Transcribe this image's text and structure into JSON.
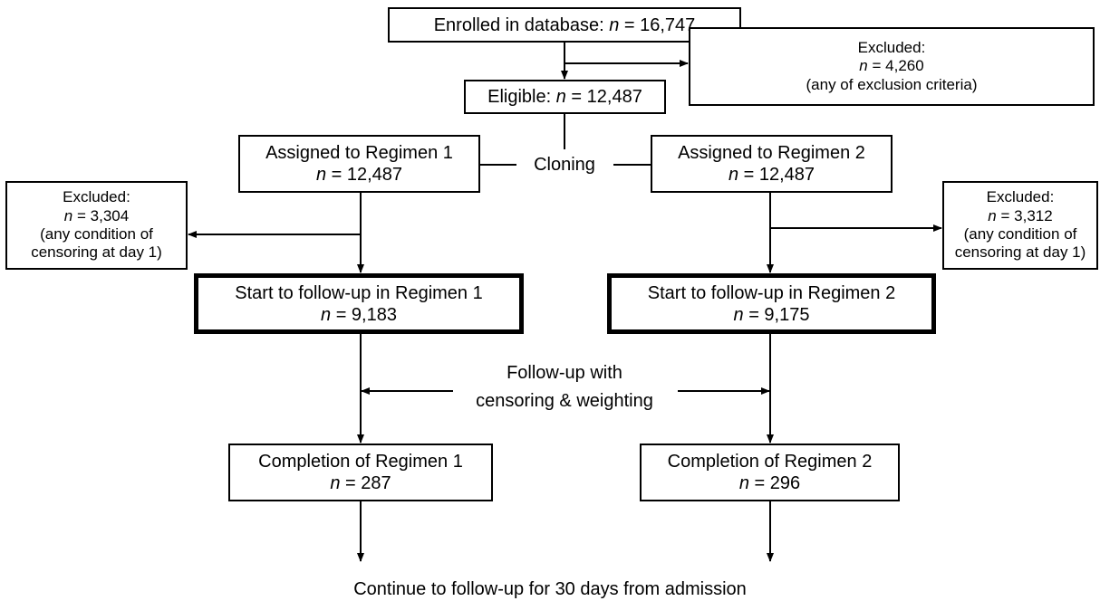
{
  "nodes": [
    {
      "lines": [
        [
          {
            "text": "Enrolled in database: "
          },
          {
            "text": "n",
            "italic": true
          },
          {
            "text": " = 16,747"
          }
        ]
      ]
    },
    {
      "lines": [
        [
          {
            "text": "Excluded:"
          }
        ],
        [
          {
            "text": "n",
            "italic": true
          },
          {
            "text": " = 4,260"
          }
        ],
        [
          {
            "text": "(any of exclusion criteria)"
          }
        ]
      ]
    },
    {
      "lines": [
        [
          {
            "text": "Eligible: "
          },
          {
            "text": "n",
            "italic": true
          },
          {
            "text": " = 12,487"
          }
        ]
      ]
    },
    {
      "lines": [
        [
          {
            "text": "Assigned to Regimen 1"
          }
        ],
        [
          {
            "text": "n",
            "italic": true
          },
          {
            "text": " = 12,487"
          }
        ]
      ]
    },
    {
      "lines": [
        [
          {
            "text": "Assigned to Regimen 2"
          }
        ],
        [
          {
            "text": "n",
            "italic": true
          },
          {
            "text": " = 12,487"
          }
        ]
      ]
    },
    {
      "lines": [
        [
          {
            "text": "Excluded:"
          }
        ],
        [
          {
            "text": "n",
            "italic": true
          },
          {
            "text": " = 3,304"
          }
        ],
        [
          {
            "text": "(any condition of"
          }
        ],
        [
          {
            "text": "censoring at day 1)"
          }
        ]
      ]
    },
    {
      "lines": [
        [
          {
            "text": "Excluded:"
          }
        ],
        [
          {
            "text": "n",
            "italic": true
          },
          {
            "text": " = 3,312"
          }
        ],
        [
          {
            "text": "(any condition of"
          }
        ],
        [
          {
            "text": "censoring at day 1)"
          }
        ]
      ]
    },
    {
      "lines": [
        [
          {
            "text": "Start to follow-up in Regimen 1"
          }
        ],
        [
          {
            "text": "n",
            "italic": true
          },
          {
            "text": " = 9,183"
          }
        ]
      ]
    },
    {
      "lines": [
        [
          {
            "text": "Start to follow-up in Regimen 2"
          }
        ],
        [
          {
            "text": "n",
            "italic": true
          },
          {
            "text": " = 9,175"
          }
        ]
      ]
    },
    {
      "lines": [
        [
          {
            "text": "Completion of Regimen 1"
          }
        ],
        [
          {
            "text": "n",
            "italic": true
          },
          {
            "text": " = 287"
          }
        ]
      ]
    },
    {
      "lines": [
        [
          {
            "text": "Completion of Regimen 2"
          }
        ],
        [
          {
            "text": "n",
            "italic": true
          },
          {
            "text": " = 296"
          }
        ]
      ]
    }
  ],
  "labels": {
    "cloning": "Cloning",
    "follow_up": [
      "Follow-up with",
      "censoring & weighting"
    ],
    "footer": "Continue to follow-up for 30 days from admission"
  }
}
